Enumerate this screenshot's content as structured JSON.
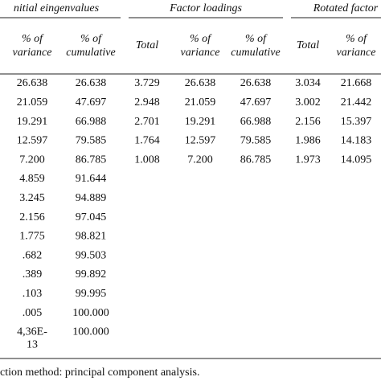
{
  "table": {
    "groups": [
      "nitial eingenvalues",
      "Factor loadings",
      "Rotated factor"
    ],
    "columns": [
      [
        "% of",
        "variance"
      ],
      [
        "% of",
        "cumulative"
      ],
      [
        "Total"
      ],
      [
        "% of",
        "variance"
      ],
      [
        "% of",
        "cumulative"
      ],
      [
        "Total"
      ],
      [
        "% of",
        "variance"
      ]
    ],
    "rows": [
      [
        [
          "26.638"
        ],
        [
          "26.638"
        ],
        [
          "3.729"
        ],
        [
          "26.638"
        ],
        [
          "26.638"
        ],
        [
          "3.034"
        ],
        [
          "21.668"
        ]
      ],
      [
        [
          "21.059"
        ],
        [
          "47.697"
        ],
        [
          "2.948"
        ],
        [
          "21.059"
        ],
        [
          "47.697"
        ],
        [
          "3.002"
        ],
        [
          "21.442"
        ]
      ],
      [
        [
          "19.291"
        ],
        [
          "66.988"
        ],
        [
          "2.701"
        ],
        [
          "19.291"
        ],
        [
          "66.988"
        ],
        [
          "2.156"
        ],
        [
          "15.397"
        ]
      ],
      [
        [
          "12.597"
        ],
        [
          "79.585"
        ],
        [
          "1.764"
        ],
        [
          "12.597"
        ],
        [
          "79.585"
        ],
        [
          "1.986"
        ],
        [
          "14.183"
        ]
      ],
      [
        [
          "7.200"
        ],
        [
          "86.785"
        ],
        [
          "1.008"
        ],
        [
          "7.200"
        ],
        [
          "86.785"
        ],
        [
          "1.973"
        ],
        [
          "14.095"
        ]
      ],
      [
        [
          "4.859"
        ],
        [
          "91.644"
        ]
      ],
      [
        [
          "3.245"
        ],
        [
          "94.889"
        ]
      ],
      [
        [
          "2.156"
        ],
        [
          "97.045"
        ]
      ],
      [
        [
          "1.775"
        ],
        [
          "98.821"
        ]
      ],
      [
        [
          ".682"
        ],
        [
          "99.503"
        ]
      ],
      [
        [
          ".389"
        ],
        [
          "99.892"
        ]
      ],
      [
        [
          ".103"
        ],
        [
          "99.995"
        ]
      ],
      [
        [
          ".005"
        ],
        [
          "100.000"
        ]
      ],
      [
        [
          "4,36E-",
          "13"
        ],
        [
          "100.000"
        ]
      ]
    ],
    "footnote": "ction method: principal component analysis."
  }
}
